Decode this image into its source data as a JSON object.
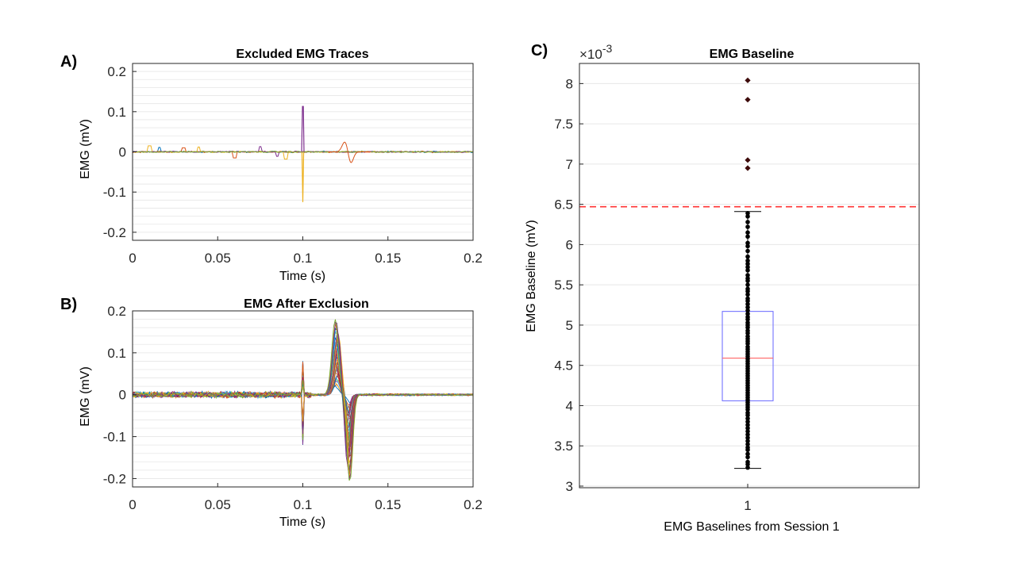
{
  "chart_data": [
    {
      "panel": "A)",
      "type": "line",
      "title": "Excluded EMG Traces",
      "xlabel": "Time (s)",
      "ylabel": "EMG (mV)",
      "xlim": [
        0,
        0.2
      ],
      "ylim": [
        -0.22,
        0.22
      ],
      "xticks": [
        0,
        0.05,
        0.1,
        0.15,
        0.2
      ],
      "xtick_labels": [
        "0",
        "0.05",
        "0.1",
        "0.15",
        "0.2"
      ],
      "yticks": [
        0.2,
        0.1,
        0,
        -0.1,
        -0.2
      ],
      "ytick_labels": [
        "0.2",
        "0.1",
        "0",
        "-0.1",
        "-0.2"
      ],
      "grid": true,
      "series_colors": [
        "#0072BD",
        "#D95319",
        "#EDB120",
        "#7E2F8E",
        "#77AC30"
      ],
      "events": [
        {
          "x": 0.1,
          "y": 0.113,
          "color": "#7E2F8E"
        },
        {
          "x": 0.1,
          "y": -0.125,
          "color": "#EDB120"
        },
        {
          "x": 0.125,
          "y": 0.028,
          "color": "#D95319"
        },
        {
          "x": 0.128,
          "y": -0.032,
          "color": "#D95319"
        }
      ]
    },
    {
      "panel": "B)",
      "type": "line",
      "title": "EMG After Exclusion",
      "xlabel": "Time (s)",
      "ylabel": "EMG (mV)",
      "xlim": [
        0,
        0.2
      ],
      "ylim": [
        -0.22,
        0.2
      ],
      "xticks": [
        0,
        0.05,
        0.1,
        0.15,
        0.2
      ],
      "xtick_labels": [
        "0",
        "0.05",
        "0.1",
        "0.15",
        "0.2"
      ],
      "yticks": [
        0.2,
        0.1,
        0,
        -0.1,
        -0.2
      ],
      "ytick_labels": [
        "0.2",
        "0.1",
        "0",
        "-0.1",
        "-0.2"
      ],
      "grid": true,
      "stimulus_time": 0.1,
      "peak": {
        "x": 0.12,
        "y_max": 0.18
      },
      "trough": {
        "x": 0.127,
        "y_min": -0.21
      },
      "series_colors": [
        "#0072BD",
        "#D95319",
        "#EDB120",
        "#7E2F8E",
        "#77AC30",
        "#4DBEEE",
        "#A2142F"
      ]
    },
    {
      "panel": "C)",
      "type": "box",
      "title": "EMG Baseline",
      "xlabel": "EMG Baselines from Session 1",
      "ylabel": "EMG Baseline (mV)",
      "y_exponent_label": "×10",
      "y_exponent": "-3",
      "ylim": [
        2.98,
        8.25
      ],
      "yticks": [
        8,
        7.5,
        7,
        6.5,
        6,
        5.5,
        5,
        4.5,
        4,
        3.5,
        3
      ],
      "ytick_labels": [
        "8",
        "7.5",
        "7",
        "6.5",
        "6",
        "5.5",
        "5",
        "4.5",
        "4",
        "3.5",
        "3"
      ],
      "xtick_labels": [
        "1"
      ],
      "grid": true,
      "box": {
        "q1": 4.06,
        "median": 4.59,
        "q3": 5.17,
        "whisker_low": 3.22,
        "whisker_high": 6.41
      },
      "threshold": 6.47,
      "outliers": [
        8.04,
        7.8,
        7.05,
        6.95
      ],
      "points": [
        6.39,
        6.35,
        6.28,
        6.22,
        6.15,
        6.1,
        6.02,
        5.98,
        5.92,
        5.85,
        5.8,
        5.76,
        5.72,
        5.68,
        5.62,
        5.58,
        5.55,
        5.5,
        5.45,
        5.42,
        5.38,
        5.33,
        5.3,
        5.26,
        5.22,
        5.18,
        5.14,
        5.1,
        5.07,
        5.03,
        5.0,
        4.97,
        4.93,
        4.9,
        4.86,
        4.83,
        4.8,
        4.77,
        4.73,
        4.7,
        4.67,
        4.64,
        4.61,
        4.58,
        4.55,
        4.52,
        4.49,
        4.46,
        4.43,
        4.4,
        4.37,
        4.34,
        4.31,
        4.28,
        4.25,
        4.22,
        4.19,
        4.16,
        4.13,
        4.1,
        4.07,
        4.04,
        4.01,
        3.98,
        3.95,
        3.91,
        3.88,
        3.84,
        3.8,
        3.76,
        3.72,
        3.68,
        3.64,
        3.6,
        3.56,
        3.52,
        3.48,
        3.45,
        3.4,
        3.36,
        3.3,
        3.27,
        3.23
      ],
      "colors": {
        "box": "#6666ff",
        "median": "#ff6666",
        "threshold": "#ff3333",
        "points": "#000000",
        "outliers": "#3d0a0a"
      }
    }
  ]
}
